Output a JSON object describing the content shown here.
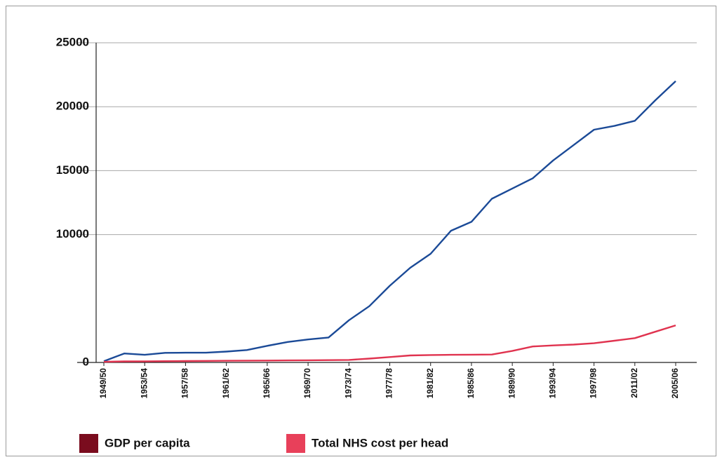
{
  "chart_data": {
    "type": "line",
    "categories": [
      "1949/50",
      null,
      "1953/54",
      null,
      "1957/58",
      null,
      "1961/62",
      null,
      "1965/66",
      null,
      "1969/70",
      null,
      "1973/74",
      null,
      "1977/78",
      null,
      "1981/82",
      null,
      "1985/86",
      null,
      "1989/90",
      null,
      "1993/94",
      null,
      "1997/98",
      null,
      "2011/02",
      null,
      "2005/06"
    ],
    "series": [
      {
        "name": "GDP per capita",
        "color": "#1b4a97",
        "legend_color": "#7a0c1e",
        "values": [
          100,
          700,
          600,
          750,
          760,
          760,
          850,
          970,
          1300,
          1600,
          1800,
          1950,
          3300,
          4400,
          6000,
          7400,
          8500,
          10300,
          11000,
          12800,
          13600,
          14400,
          15800,
          17000,
          18200,
          18500,
          18900,
          20500,
          22000
        ]
      },
      {
        "name": "Total NHS cost per head",
        "color": "#e0334f",
        "legend_color": "#e8405a",
        "values": [
          50,
          80,
          90,
          100,
          110,
          120,
          130,
          140,
          150,
          160,
          170,
          180,
          200,
          300,
          420,
          550,
          580,
          600,
          610,
          620,
          900,
          1250,
          1330,
          1400,
          1500,
          1700,
          1900,
          2400,
          2900
        ]
      }
    ],
    "ylim": [
      0,
      25000
    ],
    "yticks": [
      0,
      10000,
      15000,
      20000,
      25000
    ],
    "grid": true,
    "legend": "bottom"
  }
}
